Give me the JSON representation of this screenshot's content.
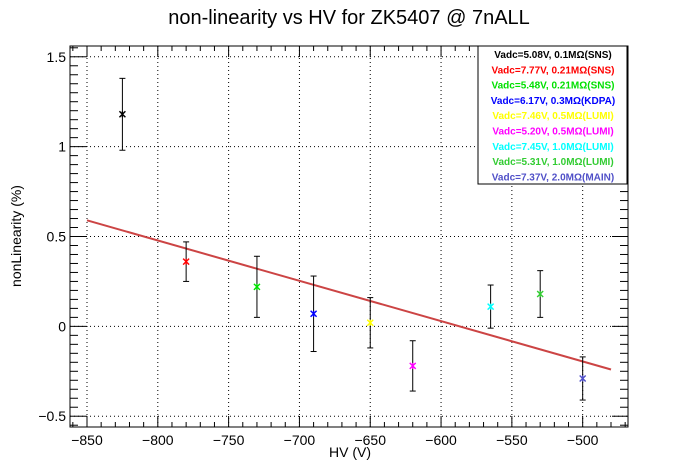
{
  "chart_data": {
    "type": "scatter",
    "title": "non-linearity vs HV for ZK5407 @ 7nALL",
    "xlabel": "HV (V)",
    "ylabel": "nonLinearity (%)",
    "xlim": [
      -862,
      -468
    ],
    "ylim": [
      -0.56,
      1.56
    ],
    "x_ticks": [
      -850,
      -800,
      -750,
      -700,
      -650,
      -600,
      -550,
      -500
    ],
    "y_ticks": [
      -0.5,
      0,
      0.5,
      1,
      1.5
    ],
    "x_tick_labels": [
      "−850",
      "−800",
      "−750",
      "−700",
      "−650",
      "−600",
      "−550",
      "−500"
    ],
    "y_tick_labels": [
      "−0.5",
      "0",
      "0.5",
      "1",
      "1.5"
    ],
    "grid": true,
    "legend_position": "top-right",
    "series": [
      {
        "name": "Vadc=5.08V, 0.1MΩ(SNS)",
        "color": "#000000",
        "x": -825,
        "y": 1.18,
        "err": 0.2
      },
      {
        "name": "Vadc=7.77V, 0.21MΩ(SNS)",
        "color": "#ff0000",
        "x": -780,
        "y": 0.36,
        "err": 0.11
      },
      {
        "name": "Vadc=5.48V, 0.21MΩ(SNS)",
        "color": "#00e000",
        "x": -730,
        "y": 0.22,
        "err": 0.17
      },
      {
        "name": "Vadc=6.17V, 0.3MΩ(KDPA)",
        "color": "#0000ff",
        "x": -690,
        "y": 0.07,
        "err": 0.21
      },
      {
        "name": "Vadc=7.46V, 0.5MΩ(LUMI)",
        "color": "#ffff00",
        "x": -650,
        "y": 0.02,
        "err": 0.14
      },
      {
        "name": "Vadc=5.20V, 0.5MΩ(LUMI)",
        "color": "#ff00ff",
        "x": -620,
        "y": -0.22,
        "err": 0.14
      },
      {
        "name": "Vadc=7.45V, 1.0MΩ(LUMI)",
        "color": "#00ffff",
        "x": -565,
        "y": 0.11,
        "err": 0.12
      },
      {
        "name": "Vadc=5.31V, 1.0MΩ(LUMI)",
        "color": "#33cc33",
        "x": -530,
        "y": 0.18,
        "err": 0.13
      },
      {
        "name": "Vadc=7.37V, 2.0MΩ(MAIN)",
        "color": "#5050c8",
        "x": -500,
        "y": -0.29,
        "err": 0.12
      }
    ],
    "fit_line": {
      "color": "#cc4444",
      "x": [
        -850,
        -480
      ],
      "y": [
        0.59,
        -0.24
      ]
    }
  }
}
